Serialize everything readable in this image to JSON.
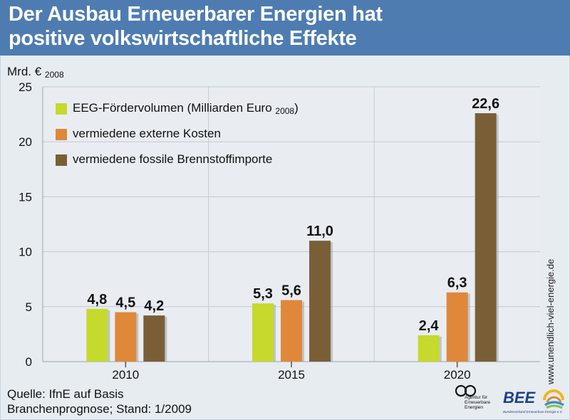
{
  "title": {
    "line1": "Der Ausbau Erneuerbarer Energien hat",
    "line2": "positive volkswirtschaftliche Effekte"
  },
  "y_unit": {
    "text": "Mrd. €",
    "sub": "2008"
  },
  "chart_data": {
    "type": "bar",
    "categories": [
      "2010",
      "2015",
      "2020"
    ],
    "series": [
      {
        "name": "EEG-Fördervolumen (Milliarden Euro 2008)",
        "values": [
          4.8,
          5.3,
          2.4
        ],
        "labels": [
          "4,8",
          "5,3",
          "2,4"
        ],
        "color": "#c6d92d"
      },
      {
        "name": "vermiedene externe Kosten",
        "values": [
          4.5,
          5.6,
          6.3
        ],
        "labels": [
          "4,5",
          "5,6",
          "6,3"
        ],
        "color": "#e0883a"
      },
      {
        "name": "vermiedene fossile Brennstoffimporte",
        "values": [
          4.2,
          11.0,
          22.6
        ],
        "labels": [
          "4,2",
          "11,0",
          "22,6"
        ],
        "color": "#7a5f36"
      }
    ],
    "yticks": [
      "0",
      "5",
      "10",
      "15",
      "20",
      "25"
    ],
    "ylim": [
      0,
      25
    ],
    "grid": true,
    "legend_position": "top-left"
  },
  "legend": [
    {
      "label": "EEG-Fördervolumen (Milliarden Euro",
      "sub": "2008",
      "tail": ")"
    },
    {
      "label": "vermiedene externe Kosten",
      "sub": "",
      "tail": ""
    },
    {
      "label": "vermiedene fossile Brennstoffimporte",
      "sub": "",
      "tail": ""
    }
  ],
  "source": {
    "line1": "Quelle: IfnE auf Basis",
    "line2": "Branchenprognose; Stand: 1/2009"
  },
  "website": "www.unendlich-viel-energie.de",
  "logos": {
    "aee_text": "Agentur für\nErneuerbare\nEnergien",
    "bee_word": "BEE",
    "bee_sub": "Bundesverband Erneuerbare Energie e.V."
  },
  "colors": {
    "title_bg": "#4e7cb1",
    "plot_bg": "#e7ecf1",
    "grid": "#c3cad2"
  }
}
